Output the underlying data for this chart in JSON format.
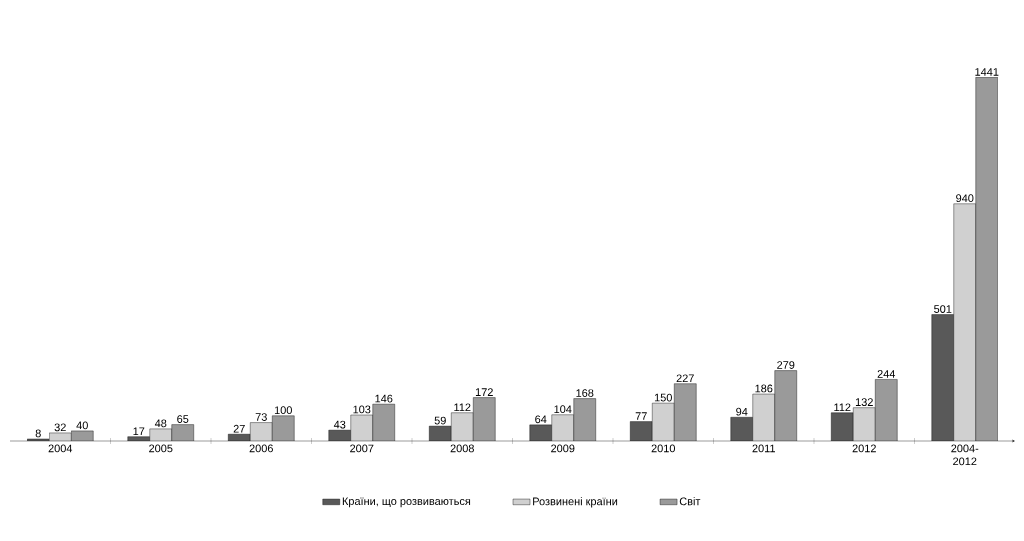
{
  "chart_data": {
    "type": "bar",
    "categories": [
      "2004",
      "2005",
      "2006",
      "2007",
      "2008",
      "2009",
      "2010",
      "2011",
      "2012",
      "2004-2012"
    ],
    "series": [
      {
        "name": "Країни, що розвиваються",
        "color": "#595959",
        "values": [
          8,
          17,
          27,
          43,
          59,
          64,
          77,
          94,
          112,
          501
        ]
      },
      {
        "name": "Розвинені країни",
        "color": "#d0d0d0",
        "values": [
          32,
          48,
          73,
          103,
          112,
          104,
          150,
          186,
          132,
          940
        ]
      },
      {
        "name": "Світ",
        "color": "#9a9a9a",
        "values": [
          40,
          65,
          100,
          146,
          172,
          168,
          227,
          279,
          244,
          1441
        ]
      }
    ],
    "data_labels": true,
    "legend": "bottom"
  }
}
